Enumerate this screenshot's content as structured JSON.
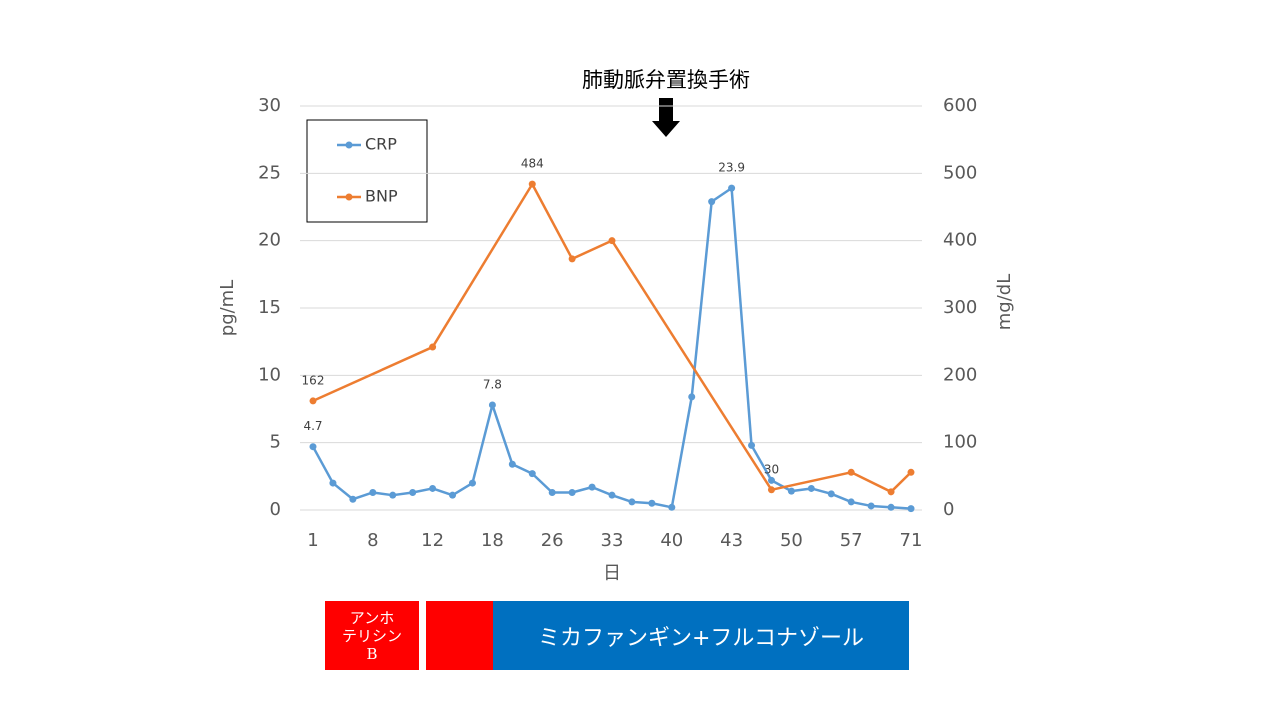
{
  "chart_data": {
    "type": "line",
    "annotation": "肺動脈弁置換手術",
    "x_label": "日",
    "y_label": "pg/mL",
    "y2_label": "mg/dL",
    "categories": [
      "1",
      null,
      null,
      "8",
      null,
      null,
      "12",
      null,
      null,
      "18",
      null,
      null,
      "26",
      null,
      null,
      "33",
      null,
      null,
      "40",
      null,
      null,
      "43",
      null,
      null,
      "50",
      null,
      null,
      "57",
      null,
      null,
      "71"
    ],
    "ylim": [
      0,
      30
    ],
    "yticks": [
      0,
      5,
      10,
      15,
      20,
      25,
      30
    ],
    "y2lim": [
      0,
      600
    ],
    "y2ticks": [
      0,
      100,
      200,
      300,
      400,
      500,
      600
    ],
    "grid": true,
    "legend": "upper left",
    "series": [
      {
        "name": "CRP",
        "color": "#5b9bd5",
        "values": [
          4.7,
          2.0,
          0.8,
          1.3,
          1.1,
          1.3,
          1.6,
          1.1,
          2.0,
          7.8,
          3.4,
          2.7,
          1.3,
          1.3,
          1.7,
          1.1,
          0.6,
          0.5,
          0.2,
          8.4,
          22.9,
          23.9,
          4.8,
          2.2,
          1.4,
          1.6,
          1.2,
          0.6,
          0.3,
          0.2,
          0.1
        ],
        "value_labels": [
          "4.7",
          null,
          null,
          null,
          null,
          null,
          null,
          null,
          null,
          "7.8",
          null,
          null,
          null,
          null,
          null,
          null,
          null,
          null,
          null,
          null,
          null,
          "23.9",
          null,
          null,
          null,
          null,
          null,
          null,
          null,
          null,
          null
        ]
      },
      {
        "name": "BNP",
        "color": "#ed7d31",
        "axis": "y2",
        "values": [
          162,
          null,
          null,
          null,
          null,
          null,
          242,
          null,
          null,
          null,
          null,
          484,
          null,
          373,
          null,
          400,
          null,
          null,
          null,
          null,
          null,
          null,
          null,
          30,
          null,
          null,
          null,
          56,
          null,
          27,
          56
        ],
        "value_labels": [
          "162",
          null,
          null,
          null,
          null,
          null,
          null,
          null,
          null,
          null,
          null,
          "484",
          null,
          null,
          null,
          null,
          null,
          null,
          null,
          null,
          null,
          null,
          null,
          "30",
          null,
          null,
          null,
          null,
          null,
          null,
          null
        ]
      }
    ]
  },
  "treatments": [
    {
      "lines": [
        "アンホ",
        "テリシン",
        "B"
      ]
    },
    {
      "lines": []
    },
    {
      "lines": [
        "ミカファンギン+フルコナゾール"
      ]
    }
  ]
}
